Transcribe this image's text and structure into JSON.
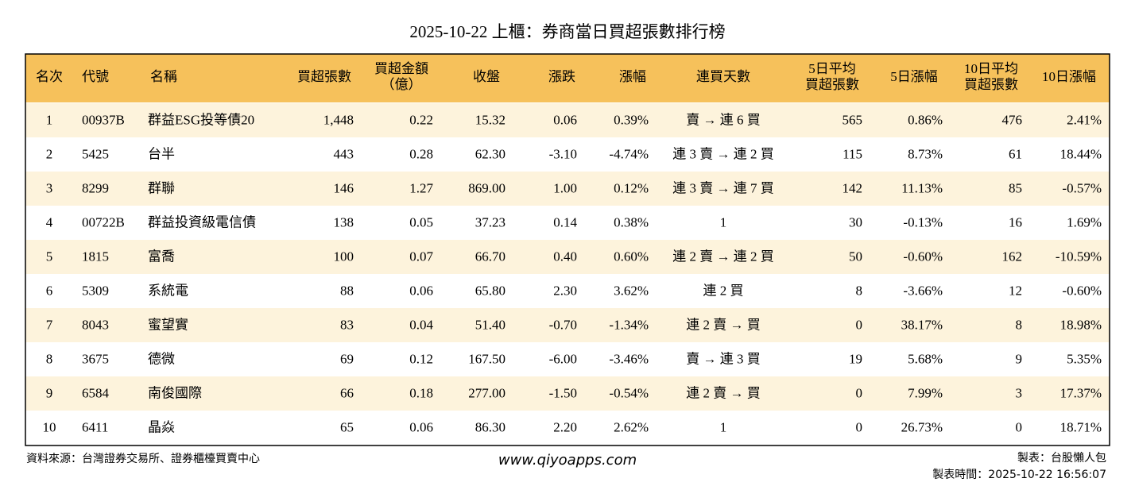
{
  "title": "2025-10-22 上櫃：券商當日買超張數排行榜",
  "table": {
    "headers": [
      [
        "名次"
      ],
      [
        "代號"
      ],
      [
        "名稱"
      ],
      [
        "買超張數"
      ],
      [
        "買超金額",
        "（億）"
      ],
      [
        "收盤"
      ],
      [
        "漲跌"
      ],
      [
        "漲幅"
      ],
      [
        "連買天數"
      ],
      [
        "5日平均",
        "買超張數"
      ],
      [
        "5日漲幅"
      ],
      [
        "10日平均",
        "買超張數"
      ],
      [
        "10日漲幅"
      ]
    ],
    "rows": [
      [
        "1",
        "00937B",
        "群益ESG投等債20",
        "1,448",
        "0.22",
        "15.32",
        "0.06",
        "0.39%",
        "賣 → 連 6 買",
        "565",
        "0.86%",
        "476",
        "2.41%"
      ],
      [
        "2",
        "5425",
        "台半",
        "443",
        "0.28",
        "62.30",
        "-3.10",
        "-4.74%",
        "連 3 賣 → 連 2 買",
        "115",
        "8.73%",
        "61",
        "18.44%"
      ],
      [
        "3",
        "8299",
        "群聯",
        "146",
        "1.27",
        "869.00",
        "1.00",
        "0.12%",
        "連 3 賣 → 連 7 買",
        "142",
        "11.13%",
        "85",
        "-0.57%"
      ],
      [
        "4",
        "00722B",
        "群益投資級電信債",
        "138",
        "0.05",
        "37.23",
        "0.14",
        "0.38%",
        "1",
        "30",
        "-0.13%",
        "16",
        "1.69%"
      ],
      [
        "5",
        "1815",
        "富喬",
        "100",
        "0.07",
        "66.70",
        "0.40",
        "0.60%",
        "連 2 賣 → 連 2 買",
        "50",
        "-0.60%",
        "162",
        "-10.59%"
      ],
      [
        "6",
        "5309",
        "系統電",
        "88",
        "0.06",
        "65.80",
        "2.30",
        "3.62%",
        "連 2 買",
        "8",
        "-3.66%",
        "12",
        "-0.60%"
      ],
      [
        "7",
        "8043",
        "蜜望實",
        "83",
        "0.04",
        "51.40",
        "-0.70",
        "-1.34%",
        "連 2 賣 → 買",
        "0",
        "38.17%",
        "8",
        "18.98%"
      ],
      [
        "8",
        "3675",
        "德微",
        "69",
        "0.12",
        "167.50",
        "-6.00",
        "-3.46%",
        "賣 → 連 3 買",
        "19",
        "5.68%",
        "9",
        "5.35%"
      ],
      [
        "9",
        "6584",
        "南俊國際",
        "66",
        "0.18",
        "277.00",
        "-1.50",
        "-0.54%",
        "連 2 賣 → 買",
        "0",
        "7.99%",
        "3",
        "17.37%"
      ],
      [
        "10",
        "6411",
        "晶焱",
        "65",
        "0.06",
        "86.30",
        "2.20",
        "2.62%",
        "1",
        "0",
        "26.73%",
        "0",
        "18.71%"
      ]
    ],
    "up_color": "#e8000b",
    "down_color": "#108a10"
  },
  "footer": {
    "source": "資料來源：台灣證券交易所、證券櫃檯買賣中心",
    "website": "www.qiyoapps.com",
    "maker": "製表：台股懶人包",
    "time": "製表時間：2025-10-22 16:56:07"
  }
}
